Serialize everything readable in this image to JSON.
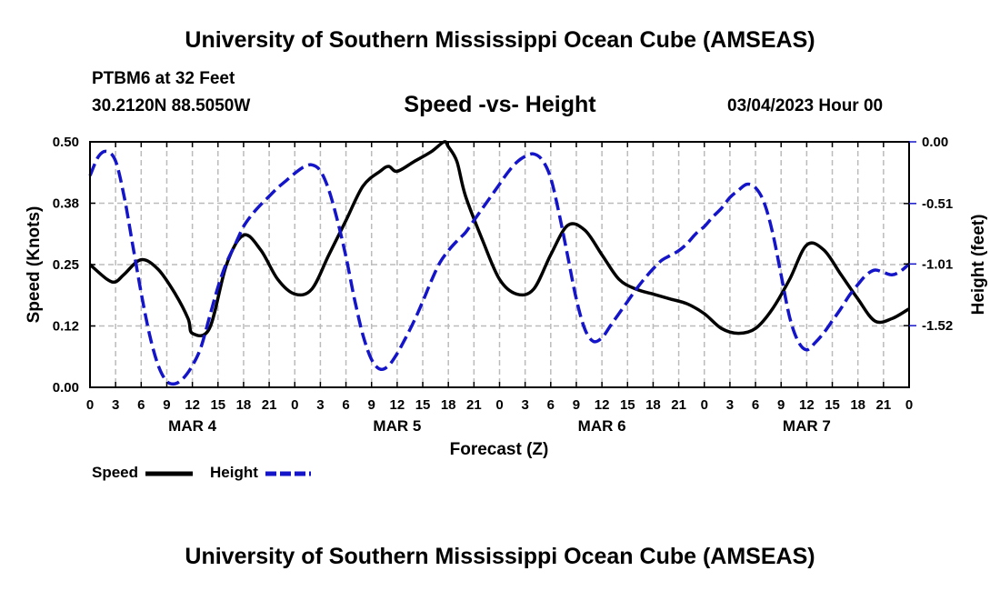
{
  "header": {
    "title": "University of Southern Mississippi Ocean Cube (AMSEAS)",
    "station": "PTBM6 at 32 Feet",
    "coords": "30.2120N  88.5050W",
    "subtitle": "Speed -vs- Height",
    "datetime": "03/04/2023 Hour 00"
  },
  "footer": {
    "title": "University of Southern Mississippi Ocean Cube (AMSEAS)"
  },
  "chart_data": {
    "type": "line",
    "title": "Speed -vs- Height",
    "xlabel": "Forecast (Z)",
    "ylabel": "Speed (Knots)",
    "y2label": "Height (feet)",
    "x_range": [
      0,
      96
    ],
    "x_tick_labels": [
      "0",
      "3",
      "6",
      "9",
      "12",
      "15",
      "18",
      "21",
      "0",
      "3",
      "6",
      "9",
      "12",
      "15",
      "18",
      "21",
      "0",
      "3",
      "6",
      "9",
      "12",
      "15",
      "18",
      "21",
      "0",
      "3",
      "6",
      "9",
      "12",
      "15",
      "18",
      "21",
      "0"
    ],
    "day_labels": [
      {
        "hour": 12,
        "label": "MAR 4"
      },
      {
        "hour": 36,
        "label": "MAR 5"
      },
      {
        "hour": 60,
        "label": "MAR 6"
      },
      {
        "hour": 84,
        "label": "MAR 7"
      }
    ],
    "ylim": [
      0,
      0.5
    ],
    "y_ticks": [
      0,
      0.125,
      0.25,
      0.375,
      0.5
    ],
    "y_tick_labels": [
      "0.00",
      "0.12",
      "0.25",
      "0.38",
      "0.50"
    ],
    "y2lim": [
      -2.03,
      0
    ],
    "y2_ticks": [
      0,
      -0.51,
      -1.01,
      -1.52
    ],
    "y2_tick_labels": [
      "0.00",
      "-0.51",
      "-1.01",
      "-1.52"
    ],
    "grid": true,
    "legend": {
      "position": "bottom-left",
      "speed_label": "Speed",
      "height_label": "Height"
    },
    "series": [
      {
        "name": "Speed",
        "axis": "left",
        "color": "#000000",
        "style": "solid",
        "x": [
          0,
          2,
          3,
          4,
          6,
          8,
          10,
          11.5,
          12,
          14,
          16,
          18,
          20,
          22,
          24,
          26,
          28,
          30,
          32,
          34,
          35,
          36,
          38,
          40,
          41.5,
          42,
          43,
          44,
          46,
          48,
          50,
          52,
          54,
          56,
          58,
          60,
          62,
          64,
          66,
          68,
          70,
          72,
          74,
          76,
          78,
          80,
          82,
          84,
          86,
          88,
          90,
          92,
          94,
          96
        ],
        "y": [
          0.25,
          0.22,
          0.215,
          0.23,
          0.26,
          0.24,
          0.19,
          0.14,
          0.11,
          0.12,
          0.25,
          0.31,
          0.28,
          0.22,
          0.19,
          0.2,
          0.27,
          0.34,
          0.41,
          0.44,
          0.45,
          0.44,
          0.46,
          0.48,
          0.5,
          0.49,
          0.46,
          0.39,
          0.3,
          0.22,
          0.19,
          0.2,
          0.27,
          0.33,
          0.32,
          0.27,
          0.22,
          0.2,
          0.19,
          0.18,
          0.17,
          0.15,
          0.12,
          0.11,
          0.12,
          0.16,
          0.22,
          0.29,
          0.28,
          0.23,
          0.18,
          0.135,
          0.14,
          0.16
        ]
      },
      {
        "name": "Height",
        "axis": "right",
        "color": "#1414c8",
        "style": "dashed",
        "x": [
          0,
          1,
          2,
          3,
          4,
          5,
          6,
          7,
          8,
          9,
          10,
          11,
          12,
          13,
          14,
          15,
          16,
          17,
          18,
          19,
          20,
          21,
          22,
          23,
          24,
          25,
          26,
          27,
          28,
          29,
          30,
          31,
          32,
          33,
          34,
          35,
          36,
          37,
          38,
          39,
          40,
          41,
          42,
          43,
          44,
          45,
          46,
          47,
          48,
          49,
          50,
          51,
          52,
          53,
          54,
          55,
          56,
          57,
          58,
          59,
          60,
          61,
          62,
          63,
          64,
          65,
          66,
          67,
          68,
          69,
          70,
          71,
          72,
          73,
          74,
          75,
          76,
          77,
          78,
          79,
          80,
          81,
          82,
          83,
          84,
          85,
          86,
          87,
          88,
          89,
          90,
          91,
          92,
          93,
          94,
          95,
          96
        ],
        "y": [
          -0.28,
          -0.12,
          -0.08,
          -0.16,
          -0.45,
          -0.85,
          -1.25,
          -1.6,
          -1.85,
          -1.98,
          -2.0,
          -1.95,
          -1.85,
          -1.7,
          -1.45,
          -1.2,
          -1.0,
          -0.85,
          -0.7,
          -0.6,
          -0.52,
          -0.45,
          -0.38,
          -0.32,
          -0.26,
          -0.21,
          -0.19,
          -0.24,
          -0.4,
          -0.65,
          -0.95,
          -1.3,
          -1.6,
          -1.8,
          -1.88,
          -1.85,
          -1.75,
          -1.62,
          -1.48,
          -1.32,
          -1.15,
          -1.0,
          -0.9,
          -0.82,
          -0.75,
          -0.65,
          -0.55,
          -0.45,
          -0.35,
          -0.25,
          -0.17,
          -0.12,
          -0.1,
          -0.15,
          -0.3,
          -0.6,
          -0.95,
          -1.3,
          -1.55,
          -1.65,
          -1.62,
          -1.52,
          -1.42,
          -1.32,
          -1.22,
          -1.13,
          -1.05,
          -0.98,
          -0.94,
          -0.9,
          -0.84,
          -0.76,
          -0.7,
          -0.62,
          -0.55,
          -0.46,
          -0.4,
          -0.35,
          -0.38,
          -0.5,
          -0.75,
          -1.1,
          -1.45,
          -1.65,
          -1.72,
          -1.66,
          -1.58,
          -1.48,
          -1.38,
          -1.27,
          -1.18,
          -1.1,
          -1.06,
          -1.08,
          -1.1,
          -1.07,
          -1.01
        ]
      }
    ]
  }
}
